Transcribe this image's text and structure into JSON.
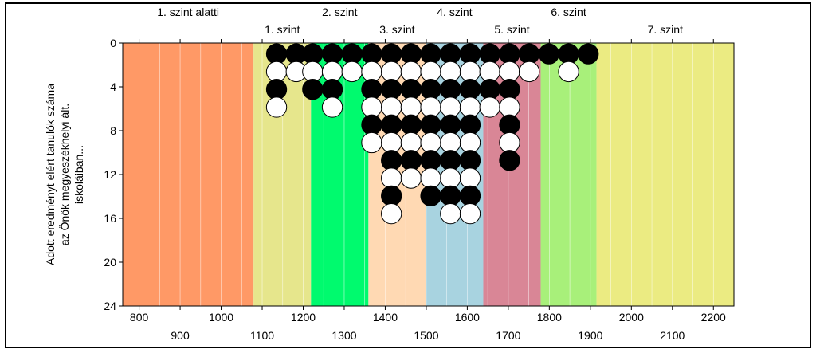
{
  "chart_data": {
    "type": "scatter",
    "ylabel_lines": [
      "Adott eredményt elért tanulók száma",
      "az Önök megyeszékhelyi ált.",
      "iskoláiban..."
    ],
    "xlim": [
      760,
      2250
    ],
    "ylim": [
      0,
      24
    ],
    "y_reversed": true,
    "y_ticks": [
      0,
      4,
      8,
      12,
      16,
      20,
      24
    ],
    "x_ticks_top_row": [
      800,
      1000,
      1200,
      1400,
      1600,
      1800,
      2000,
      2200
    ],
    "x_ticks_bottom_row": [
      900,
      1100,
      1300,
      1500,
      1700,
      1900,
      2100
    ],
    "grid": "vertical",
    "levels": [
      {
        "name": "1. szint alatti",
        "from": 760,
        "to": 1079,
        "color": "#FF9966"
      },
      {
        "name": "1. szint",
        "from": 1079,
        "to": 1219,
        "color": "#E6E68C"
      },
      {
        "name": "2. szint",
        "from": 1219,
        "to": 1359,
        "color": "#00FA6E"
      },
      {
        "name": "3. szint",
        "from": 1359,
        "to": 1499,
        "color": "#FFD9B3"
      },
      {
        "name": "4. szint",
        "from": 1499,
        "to": 1639,
        "color": "#A8D3E0"
      },
      {
        "name": "5. szint",
        "from": 1639,
        "to": 1779,
        "color": "#D98696"
      },
      {
        "name": "6. szint",
        "from": 1779,
        "to": 1915,
        "color": "#A8F07A"
      },
      {
        "name": "7. szint",
        "from": 1915,
        "to": 2250,
        "color": "#EBEB82"
      }
    ],
    "columns": [
      {
        "x": 1135,
        "stack": [
          "black",
          "white",
          "black",
          "white"
        ]
      },
      {
        "x": 1183,
        "stack": [
          "black",
          "white"
        ]
      },
      {
        "x": 1223,
        "stack": [
          "black",
          "white",
          "black"
        ]
      },
      {
        "x": 1271,
        "stack": [
          "black",
          "white",
          "black",
          "white"
        ]
      },
      {
        "x": 1319,
        "stack": [
          "black",
          "white"
        ]
      },
      {
        "x": 1367,
        "stack": [
          "black",
          "white",
          "black",
          "white",
          "black",
          "white"
        ]
      },
      {
        "x": 1415,
        "stack": [
          "black",
          "white",
          "black",
          "white",
          "black",
          "white",
          "black",
          "white",
          "black",
          "white"
        ]
      },
      {
        "x": 1463,
        "stack": [
          "black",
          "white",
          "black",
          "white",
          "black",
          "white",
          "black",
          "white"
        ]
      },
      {
        "x": 1511,
        "stack": [
          "black",
          "white",
          "black",
          "white",
          "black",
          "white",
          "black",
          "white",
          "black"
        ]
      },
      {
        "x": 1559,
        "stack": [
          "black",
          "white",
          "black",
          "white",
          "black",
          "white",
          "black",
          "white",
          "black",
          "white"
        ]
      },
      {
        "x": 1607,
        "stack": [
          "black",
          "white",
          "black",
          "white",
          "black",
          "white",
          "black",
          "white",
          "black",
          "white"
        ]
      },
      {
        "x": 1655,
        "stack": [
          "black",
          "white",
          "black",
          "white"
        ]
      },
      {
        "x": 1703,
        "stack": [
          "black",
          "white",
          "black",
          "white",
          "black",
          "white",
          "black"
        ]
      },
      {
        "x": 1751,
        "stack": [
          "black",
          "white"
        ]
      },
      {
        "x": 1799,
        "stack": [
          "black"
        ]
      },
      {
        "x": 1847,
        "stack": [
          "black",
          "white"
        ]
      },
      {
        "x": 1895,
        "stack": [
          "black"
        ]
      }
    ]
  },
  "colors": {
    "frame": "#000000",
    "grid": "#FFFFFF",
    "dot_black": "#000000",
    "dot_white": "#FFFFFF",
    "dot_stroke": "#000000"
  }
}
